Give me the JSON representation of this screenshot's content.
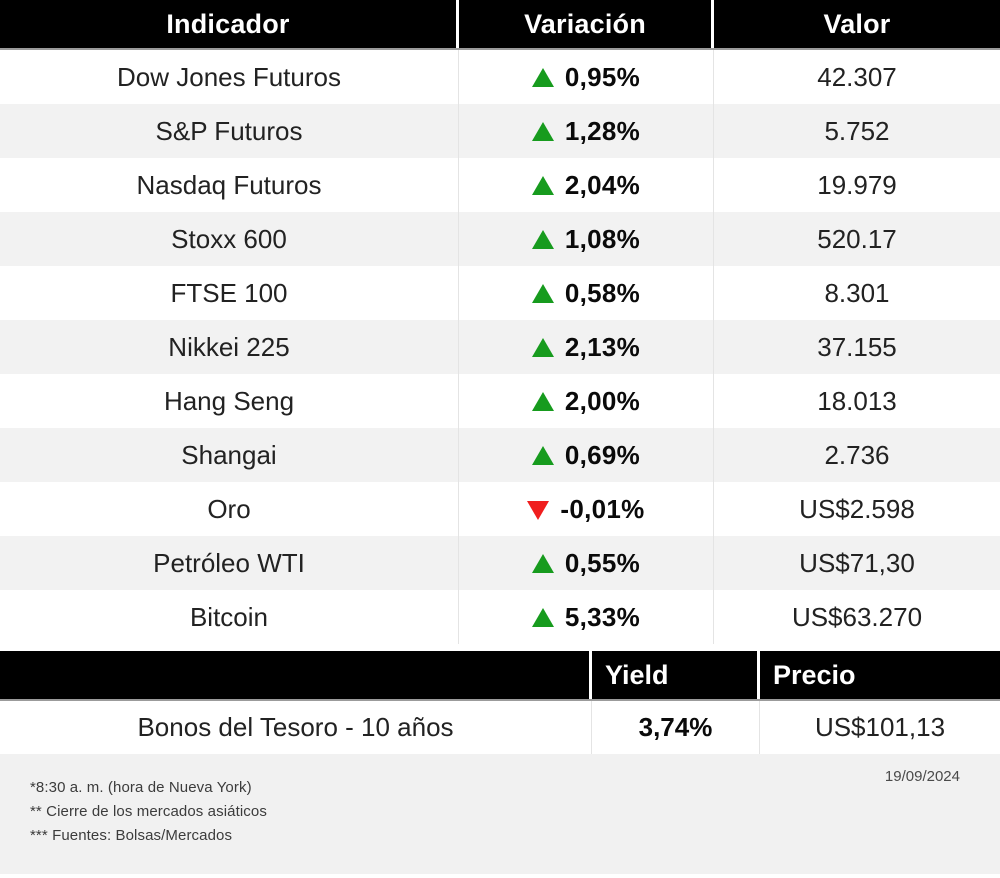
{
  "market_table": {
    "headers": [
      "Indicador",
      "Variación",
      "Valor"
    ],
    "rows": [
      {
        "indicator": "Dow Jones Futuros",
        "direction": "up",
        "variation": "0,95%",
        "value": "42.307"
      },
      {
        "indicator": "S&P Futuros",
        "direction": "up",
        "variation": "1,28%",
        "value": "5.752"
      },
      {
        "indicator": "Nasdaq Futuros",
        "direction": "up",
        "variation": "2,04%",
        "value": "19.979"
      },
      {
        "indicator": "Stoxx 600",
        "direction": "up",
        "variation": "1,08%",
        "value": "520.17"
      },
      {
        "indicator": "FTSE 100",
        "direction": "up",
        "variation": "0,58%",
        "value": "8.301"
      },
      {
        "indicator": "Nikkei 225",
        "direction": "up",
        "variation": "2,13%",
        "value": "37.155"
      },
      {
        "indicator": "Hang Seng",
        "direction": "up",
        "variation": "2,00%",
        "value": "18.013"
      },
      {
        "indicator": "Shangai",
        "direction": "up",
        "variation": "0,69%",
        "value": "2.736"
      },
      {
        "indicator": "Oro",
        "direction": "down",
        "variation": "-0,01%",
        "value": "US$2.598"
      },
      {
        "indicator": "Petróleo WTI",
        "direction": "up",
        "variation": "0,55%",
        "value": "US$71,30"
      },
      {
        "indicator": "Bitcoin",
        "direction": "up",
        "variation": "5,33%",
        "value": "US$63.270"
      }
    ]
  },
  "bond_table": {
    "headers": {
      "yield": "Yield",
      "price": "Precio"
    },
    "row": {
      "indicator": "Bonos del Tesoro - 10 años",
      "yield": "3,74%",
      "price": "US$101,13"
    }
  },
  "footer": {
    "notes": [
      "*8:30 a. m. (hora de Nueva York)",
      "** Cierre de los mercados asiáticos",
      "*** Fuentes:  Bolsas/Mercados"
    ],
    "date": "19/09/2024"
  },
  "colors": {
    "up_triangle": "#179b1e",
    "down_triangle": "#f01e1e",
    "header_bg": "#000000",
    "row_alt_bg": "#f2f2f2",
    "footer_bg": "#f1f1f1"
  }
}
